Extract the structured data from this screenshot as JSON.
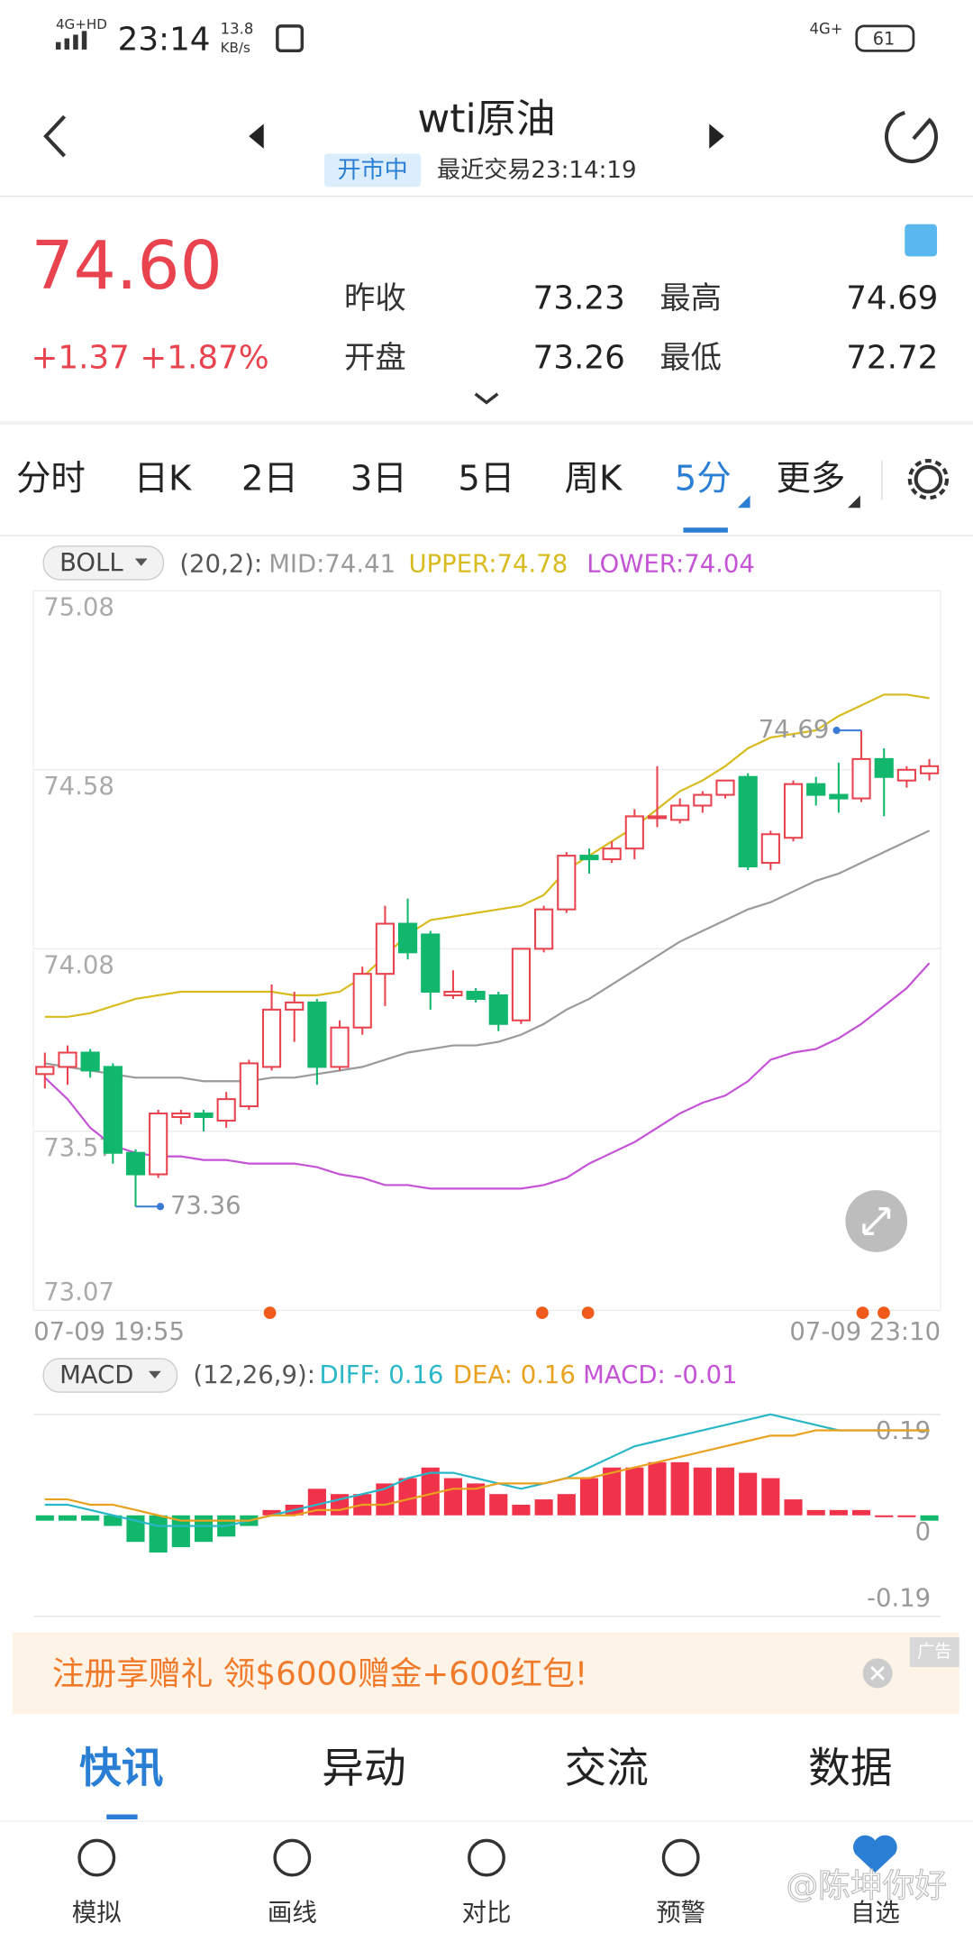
{
  "status_bar": {
    "network": "4G+HD",
    "time": "23:14",
    "speed": "13.8",
    "speed_unit": "KB/s",
    "network_right": "4G+",
    "battery": "61"
  },
  "header": {
    "title": "wti原油",
    "status": "开市中",
    "last_trade": "最近交易23:14:19"
  },
  "quote": {
    "price": "74.60",
    "change": "+1.37",
    "change_pct": "+1.87%",
    "fields": [
      {
        "label": "昨收",
        "value": "73.23"
      },
      {
        "label": "最高",
        "value": "74.69"
      },
      {
        "label": "开盘",
        "value": "73.26"
      },
      {
        "label": "最低",
        "value": "72.72"
      }
    ]
  },
  "period_tabs": [
    "分时",
    "日K",
    "2日",
    "3日",
    "5日",
    "周K",
    "5分",
    "更多"
  ],
  "chart_data": [
    {
      "type": "candlestick",
      "indicator": "BOLL",
      "params": "(20,2):",
      "categories": [
        "07-09 19:55",
        null,
        null,
        null,
        null,
        null,
        null,
        null,
        null,
        null,
        null,
        null,
        null,
        null,
        null,
        null,
        null,
        null,
        null,
        null,
        null,
        null,
        null,
        null,
        null,
        null,
        null,
        null,
        null,
        null,
        null,
        null,
        null,
        null,
        null,
        null,
        null,
        null,
        null,
        "07-09 23:10"
      ],
      "open": [
        73.73,
        73.75,
        73.79,
        73.75,
        73.51,
        73.45,
        73.61,
        73.62,
        73.6,
        73.64,
        73.75,
        73.91,
        73.93,
        73.75,
        73.86,
        74.01,
        74.15,
        74.12,
        73.95,
        73.96,
        73.95,
        73.88,
        74.08,
        74.19,
        74.34,
        74.33,
        74.36,
        74.45,
        74.44,
        74.48,
        74.51,
        74.56,
        74.32,
        74.39,
        74.54,
        74.51,
        74.5,
        74.61,
        74.55,
        74.57
      ],
      "high": [
        73.79,
        73.81,
        73.8,
        73.76,
        73.52,
        73.63,
        73.63,
        73.63,
        73.68,
        73.77,
        73.98,
        73.96,
        73.94,
        73.88,
        74.03,
        74.2,
        74.22,
        74.13,
        74.02,
        73.97,
        73.96,
        74.08,
        74.2,
        74.35,
        74.36,
        74.38,
        74.47,
        74.59,
        74.5,
        74.52,
        74.55,
        74.57,
        74.41,
        74.55,
        74.56,
        74.6,
        74.69,
        74.64,
        74.59,
        74.61
      ],
      "low": [
        73.69,
        73.7,
        73.72,
        73.48,
        73.36,
        73.44,
        73.59,
        73.57,
        73.58,
        73.63,
        73.74,
        73.82,
        73.7,
        73.74,
        73.84,
        73.92,
        74.05,
        73.91,
        73.94,
        73.93,
        73.85,
        73.87,
        74.07,
        74.18,
        74.29,
        74.32,
        74.33,
        74.42,
        74.43,
        74.46,
        74.5,
        74.3,
        74.3,
        74.38,
        74.48,
        74.46,
        74.49,
        74.45,
        74.53,
        74.55
      ],
      "close": [
        73.75,
        73.79,
        73.74,
        73.51,
        73.45,
        73.62,
        73.62,
        73.61,
        73.66,
        73.76,
        73.91,
        73.93,
        73.75,
        73.86,
        74.01,
        74.15,
        74.07,
        73.96,
        73.96,
        73.94,
        73.87,
        74.08,
        74.19,
        74.34,
        74.33,
        74.36,
        74.45,
        74.45,
        74.48,
        74.51,
        74.55,
        74.31,
        74.4,
        74.54,
        74.51,
        74.5,
        74.61,
        74.56,
        74.58,
        74.59
      ],
      "series": [
        {
          "name": "MID:74.41",
          "color": "#9a9a9a",
          "values": [
            73.76,
            73.75,
            73.74,
            73.73,
            73.72,
            73.72,
            73.72,
            73.71,
            73.71,
            73.71,
            73.72,
            73.72,
            73.73,
            73.74,
            73.75,
            73.77,
            73.79,
            73.8,
            73.81,
            73.81,
            73.82,
            73.84,
            73.87,
            73.91,
            73.94,
            73.98,
            74.02,
            74.06,
            74.1,
            74.13,
            74.16,
            74.19,
            74.21,
            74.24,
            74.27,
            74.29,
            74.32,
            74.35,
            74.38,
            74.41
          ]
        },
        {
          "name": "UPPER:74.78",
          "color": "#d8bb1e",
          "values": [
            73.89,
            73.89,
            73.9,
            73.92,
            73.94,
            73.95,
            73.96,
            73.96,
            73.96,
            73.96,
            73.96,
            73.95,
            73.95,
            73.96,
            74.0,
            74.06,
            74.12,
            74.16,
            74.17,
            74.18,
            74.19,
            74.2,
            74.23,
            74.3,
            74.34,
            74.38,
            74.42,
            74.47,
            74.52,
            74.55,
            74.59,
            74.64,
            74.67,
            74.68,
            74.69,
            74.73,
            74.76,
            74.79,
            74.79,
            74.78
          ]
        },
        {
          "name": "LOWER:74.04",
          "color": "#c453d6",
          "values": [
            73.72,
            73.66,
            73.58,
            73.53,
            73.51,
            73.5,
            73.5,
            73.49,
            73.49,
            73.48,
            73.48,
            73.48,
            73.47,
            73.45,
            73.44,
            73.42,
            73.42,
            73.41,
            73.41,
            73.41,
            73.41,
            73.41,
            73.42,
            73.44,
            73.48,
            73.51,
            73.54,
            73.58,
            73.62,
            73.65,
            73.67,
            73.71,
            73.77,
            73.79,
            73.8,
            73.83,
            73.87,
            73.92,
            73.97,
            74.04
          ]
        }
      ],
      "annotations": [
        {
          "label": "74.69",
          "value": 74.69
        },
        {
          "label": "73.36",
          "value": 73.36
        }
      ],
      "ylim": [
        73.07,
        75.08
      ],
      "yticks": [
        75.08,
        74.58,
        74.08,
        73.57,
        73.07
      ],
      "grid": true,
      "up_color": "#e8434e",
      "down_color": "#10b76c"
    },
    {
      "type": "macd",
      "indicator": "MACD",
      "params": "(12,26,9):",
      "series": [
        {
          "name": "DIFF: 0.16",
          "color": "#2ab7c8",
          "values": [
            0.02,
            0.02,
            0.01,
            0.0,
            -0.01,
            -0.02,
            -0.02,
            -0.02,
            -0.02,
            -0.01,
            0.0,
            0.01,
            0.02,
            0.03,
            0.04,
            0.05,
            0.07,
            0.08,
            0.08,
            0.07,
            0.06,
            0.05,
            0.06,
            0.07,
            0.09,
            0.11,
            0.13,
            0.14,
            0.15,
            0.16,
            0.17,
            0.18,
            0.19,
            0.18,
            0.17,
            0.16,
            0.16,
            0.16,
            0.16,
            0.16
          ]
        },
        {
          "name": "DEA: 0.16",
          "color": "#e9a21f",
          "values": [
            0.03,
            0.03,
            0.02,
            0.02,
            0.01,
            0.0,
            -0.01,
            -0.01,
            -0.01,
            -0.01,
            0.0,
            0.0,
            0.01,
            0.01,
            0.02,
            0.02,
            0.03,
            0.04,
            0.05,
            0.05,
            0.06,
            0.06,
            0.06,
            0.07,
            0.07,
            0.08,
            0.09,
            0.1,
            0.11,
            0.12,
            0.13,
            0.14,
            0.15,
            0.15,
            0.16,
            0.16,
            0.16,
            0.16,
            0.16,
            0.16
          ]
        },
        {
          "name": "MACD: -0.01",
          "type": "bar",
          "color": "#c453d6",
          "values": [
            -0.01,
            -0.01,
            -0.01,
            -0.02,
            -0.05,
            -0.07,
            -0.06,
            -0.05,
            -0.04,
            -0.02,
            0.01,
            0.02,
            0.05,
            0.04,
            0.04,
            0.06,
            0.07,
            0.09,
            0.07,
            0.06,
            0.04,
            0.02,
            0.03,
            0.04,
            0.07,
            0.09,
            0.09,
            0.1,
            0.1,
            0.09,
            0.09,
            0.08,
            0.07,
            0.03,
            0.01,
            0.01,
            0.01,
            0.0,
            0.0,
            -0.01
          ]
        }
      ],
      "ylim": [
        -0.19,
        0.19
      ],
      "yticks": [
        0.19,
        0,
        -0.19
      ],
      "grid": true,
      "up_color": "#f0334a",
      "down_color": "#10b76c"
    }
  ],
  "ad": {
    "text": "注册享赠礼 领$6000赠金+600红包!",
    "tag": "广告"
  },
  "content_tabs": [
    "快讯",
    "异动",
    "交流",
    "数据"
  ],
  "nav": [
    "模拟",
    "画线",
    "对比",
    "预警",
    "自选"
  ],
  "watermark": "@陈坤你好"
}
